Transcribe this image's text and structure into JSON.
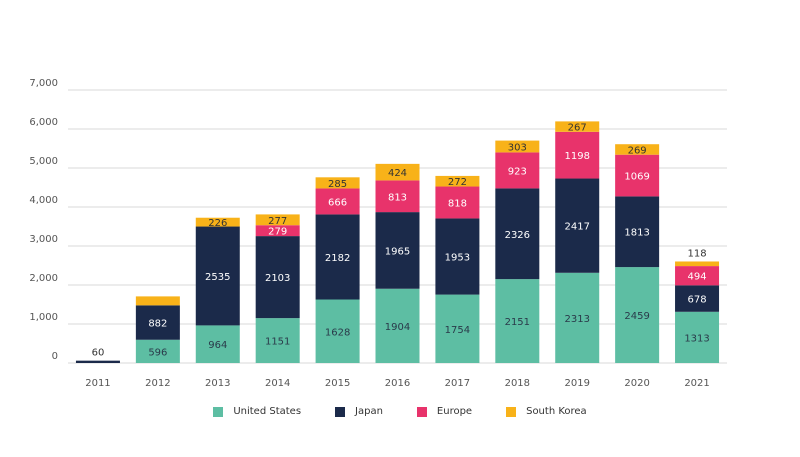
{
  "chart_data": {
    "type": "bar",
    "stacked": true,
    "title": "",
    "xlabel": "",
    "ylabel": "",
    "ylim": [
      0,
      7000
    ],
    "yticks": [
      0,
      1000,
      2000,
      3000,
      4000,
      5000,
      6000,
      7000
    ],
    "ytick_labels": [
      "0",
      "1,000",
      "2,000",
      "3,000",
      "4,000",
      "5,000",
      "6,000",
      "7,000"
    ],
    "grid": true,
    "legend_position": "bottom",
    "categories": [
      "2011",
      "2012",
      "2013",
      "2014",
      "2015",
      "2016",
      "2017",
      "2018",
      "2019",
      "2020",
      "2021"
    ],
    "series": [
      {
        "name": "United States",
        "color": "#5dbea3",
        "label_color": "#2a3a4a",
        "values": [
          0,
          596,
          964,
          1151,
          1628,
          1904,
          1754,
          2151,
          2313,
          2459,
          1313
        ],
        "labels": [
          "",
          "596",
          "964",
          "1151",
          "1628",
          "1904",
          "1754",
          "2151",
          "2313",
          "2459",
          "1313"
        ]
      },
      {
        "name": "Japan",
        "color": "#1b2a4a",
        "label_color": "#ffffff",
        "values": [
          60,
          882,
          2535,
          2103,
          2182,
          1965,
          1953,
          2326,
          2417,
          1813,
          678
        ],
        "labels": [
          "60",
          "882",
          "2535",
          "2103",
          "2182",
          "1965",
          "1953",
          "2326",
          "2417",
          "1813",
          "678"
        ]
      },
      {
        "name": "Europe",
        "color": "#e8336b",
        "label_color": "#ffffff",
        "values": [
          0,
          0,
          0,
          279,
          666,
          813,
          818,
          923,
          1198,
          1069,
          494
        ],
        "labels": [
          "",
          "",
          "",
          "279",
          "666",
          "813",
          "818",
          "923",
          "1198",
          "1069",
          "494"
        ]
      },
      {
        "name": "South Korea",
        "color": "#f8b219",
        "label_color": "#333333",
        "values": [
          0,
          230,
          226,
          277,
          285,
          424,
          272,
          303,
          267,
          269,
          118
        ],
        "labels": [
          "",
          "",
          "226",
          "277",
          "285",
          "424",
          "272",
          "303",
          "267",
          "269",
          "118"
        ]
      }
    ]
  }
}
